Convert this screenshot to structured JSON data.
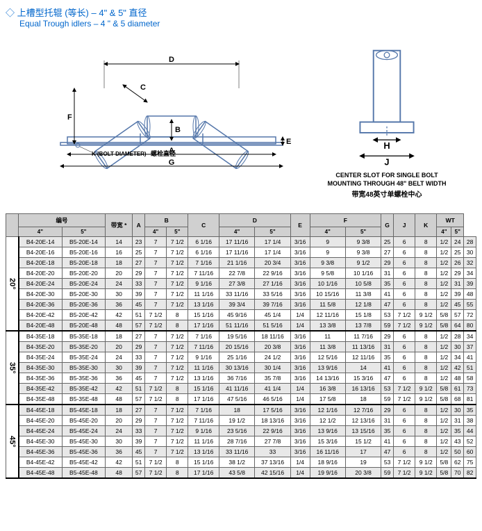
{
  "header": {
    "title_cn": "◇ 上槽型托辊 (等长) – 4\" & 5\" 直径",
    "title_en": "Equal Trough idlers – 4 \" & 5 diameter"
  },
  "diagram": {
    "bolt_label_en": "K (BOLT DIAMETER)",
    "bolt_label_cn": "螺栓直径",
    "labels": [
      "A",
      "B",
      "C",
      "D",
      "E",
      "F",
      "G",
      "K"
    ],
    "right_caption_en": "CENTER SLOT FOR SINGLE BOLT MOUNTING THROUGH 48\" BELT WIDTH",
    "right_caption_cn": "带宽48英寸单螺栓中心",
    "right_labels": [
      "H",
      "J"
    ]
  },
  "table": {
    "headers": {
      "model": "编号",
      "bw": "带宽\n*",
      "cols": [
        "A",
        "B",
        "C",
        "D",
        "E",
        "F",
        "G",
        "J",
        "K",
        "WT"
      ],
      "sub4": "4\"",
      "sub5": "5\""
    },
    "sections": [
      {
        "angle": "20°",
        "rows": [
          [
            "B4-20E-14",
            "B5-20E-14",
            "14",
            "23",
            "7",
            "7 1/2",
            "6 1/16",
            "17 11/16",
            "17 1/4",
            "3/16",
            "9",
            "9 3/8",
            "25",
            "6",
            "8",
            "1/2",
            "24",
            "28"
          ],
          [
            "B4-20E-16",
            "B5-20E-16",
            "16",
            "25",
            "7",
            "7 1/2",
            "6 1/16",
            "17 11/16",
            "17 1/4",
            "3/16",
            "9",
            "9 3/8",
            "27",
            "6",
            "8",
            "1/2",
            "25",
            "30"
          ],
          [
            "B4-20E-18",
            "B5-20E-18",
            "18",
            "27",
            "7",
            "7 1/2",
            "7 1/16",
            "21 1/16",
            "20 3/4",
            "3/16",
            "9 3/8",
            "9 1/2",
            "29",
            "6",
            "8",
            "1/2",
            "26",
            "32"
          ],
          [
            "B4-20E-20",
            "B5-20E-20",
            "20",
            "29",
            "7",
            "7 1/2",
            "7 11/16",
            "22 7/8",
            "22 9/16",
            "3/16",
            "9 5/8",
            "10 1/16",
            "31",
            "6",
            "8",
            "1/2",
            "29",
            "34"
          ],
          [
            "B4-20E-24",
            "B5-20E-24",
            "24",
            "33",
            "7",
            "7 1/2",
            "9 1/16",
            "27 3/8",
            "27 1/16",
            "3/16",
            "10 1/16",
            "10 5/8",
            "35",
            "6",
            "8",
            "1/2",
            "31",
            "39"
          ],
          [
            "B4-20E-30",
            "B5-20E-30",
            "30",
            "39",
            "7",
            "7 1/2",
            "11 1/16",
            "33 11/16",
            "33 5/16",
            "3/16",
            "10 15/16",
            "11 3/8",
            "41",
            "6",
            "8",
            "1/2",
            "39",
            "48"
          ],
          [
            "B4-20E-36",
            "B5-20E-36",
            "36",
            "45",
            "7",
            "7 1/2",
            "13 1/16",
            "39 3/4",
            "39 7/16",
            "3/16",
            "11 5/8",
            "12 1/8",
            "47",
            "6",
            "8",
            "1/2",
            "45",
            "55"
          ],
          [
            "B4-20E-42",
            "B5-20E-42",
            "42",
            "51",
            "7 1/2",
            "8",
            "15 1/16",
            "45 9/16",
            "45 1/4",
            "1/4",
            "12 11/16",
            "15 1/8",
            "53",
            "7 1/2",
            "9 1/2",
            "5/8",
            "57",
            "72"
          ],
          [
            "B4-20E-48",
            "B5-20E-48",
            "48",
            "57",
            "7 1/2",
            "8",
            "17 1/16",
            "51 11/16",
            "51 5/16",
            "1/4",
            "13 3/8",
            "13 7/8",
            "59",
            "7 1/2",
            "9 1/2",
            "5/8",
            "64",
            "80"
          ]
        ]
      },
      {
        "angle": "35°",
        "rows": [
          [
            "B4-35E-18",
            "B5-35E-18",
            "18",
            "27",
            "7",
            "7 1/2",
            "7 1/16",
            "19 5/16",
            "18 11/16",
            "3/16",
            "11",
            "11 7/16",
            "29",
            "6",
            "8",
            "1/2",
            "28",
            "34"
          ],
          [
            "B4-35E-20",
            "B5-35E-20",
            "20",
            "29",
            "7",
            "7 1/2",
            "7 11/16",
            "20 15/16",
            "20 3/8",
            "3/16",
            "11 3/8",
            "11 13/16",
            "31",
            "6",
            "8",
            "1/2",
            "30",
            "37"
          ],
          [
            "B4-35E-24",
            "B5-35E-24",
            "24",
            "33",
            "7",
            "7 1/2",
            "9 1/16",
            "25 1/16",
            "24 1/2",
            "3/16",
            "12 5/16",
            "12 11/16",
            "35",
            "6",
            "8",
            "1/2",
            "34",
            "41"
          ],
          [
            "B4-35E-30",
            "B5-35E-30",
            "30",
            "39",
            "7",
            "7 1/2",
            "11 1/16",
            "30 13/16",
            "30 1/4",
            "3/16",
            "13 9/16",
            "14",
            "41",
            "6",
            "8",
            "1/2",
            "42",
            "51"
          ],
          [
            "B4-35E-36",
            "B5-35E-36",
            "36",
            "45",
            "7",
            "7 1/2",
            "13 1/16",
            "36 7/16",
            "35 7/8",
            "3/16",
            "14 13/16",
            "15 3/16",
            "47",
            "6",
            "8",
            "1/2",
            "48",
            "58"
          ],
          [
            "B4-35E-42",
            "B5-35E-42",
            "42",
            "51",
            "7 1/2",
            "8",
            "15 1/16",
            "41 11/16",
            "41 1/4",
            "1/4",
            "16 3/8",
            "16 13/16",
            "53",
            "7 1/2",
            "9 1/2",
            "5/8",
            "61",
            "73"
          ],
          [
            "B4-35E-48",
            "B5-35E-48",
            "48",
            "57",
            "7 1/2",
            "8",
            "17 1/16",
            "47 5/16",
            "46 5/16",
            "1/4",
            "17 5/8",
            "18",
            "59",
            "7 1/2",
            "9 1/2",
            "5/8",
            "68",
            "81"
          ]
        ]
      },
      {
        "angle": "45°",
        "rows": [
          [
            "B4-45E-18",
            "B5-45E-18",
            "18",
            "27",
            "7",
            "7 1/2",
            "7 1/16",
            "18",
            "17 5/16",
            "3/16",
            "12 1/16",
            "12 7/16",
            "29",
            "6",
            "8",
            "1/2",
            "30",
            "35"
          ],
          [
            "B4-45E-20",
            "B5-45E-20",
            "20",
            "29",
            "7",
            "7 1/2",
            "7 11/16",
            "19 1/2",
            "18 13/16",
            "3/16",
            "12 1/2",
            "12 13/16",
            "31",
            "6",
            "8",
            "1/2",
            "31",
            "38"
          ],
          [
            "B4-45E-24",
            "B5-45E-24",
            "24",
            "33",
            "7",
            "7 1/2",
            "9 1/16",
            "23 5/16",
            "22 9/16",
            "3/16",
            "13 9/16",
            "13 15/16",
            "35",
            "6",
            "8",
            "1/2",
            "35",
            "44"
          ],
          [
            "B4-45E-30",
            "B5-45E-30",
            "30",
            "39",
            "7",
            "7 1/2",
            "11 1/16",
            "28 7/16",
            "27 7/8",
            "3/16",
            "15 3/16",
            "15 1/2",
            "41",
            "6",
            "8",
            "1/2",
            "43",
            "52"
          ],
          [
            "B4-45E-36",
            "B5-45E-36",
            "36",
            "45",
            "7",
            "7 1/2",
            "13 1/16",
            "33 11/16",
            "33",
            "3/16",
            "16 11/16",
            "17",
            "47",
            "6",
            "8",
            "1/2",
            "50",
            "60"
          ],
          [
            "B4-45E-42",
            "B5-45E-42",
            "42",
            "51",
            "7 1/2",
            "8",
            "15 1/16",
            "38 1/2",
            "37 13/16",
            "1/4",
            "18 9/16",
            "19",
            "53",
            "7 1/2",
            "9 1/2",
            "5/8",
            "62",
            "75"
          ],
          [
            "B4-45E-48",
            "B5-45E-48",
            "48",
            "57",
            "7 1/2",
            "8",
            "17 1/16",
            "43 5/8",
            "42 15/16",
            "1/4",
            "19 9/16",
            "20 3/8",
            "59",
            "7 1/2",
            "9 1/2",
            "5/8",
            "70",
            "82"
          ]
        ]
      }
    ]
  },
  "colors": {
    "title": "#0066cc",
    "header_bg": "#d0d0d0",
    "row_alt": "#e8e8e8",
    "border": "#666666"
  }
}
